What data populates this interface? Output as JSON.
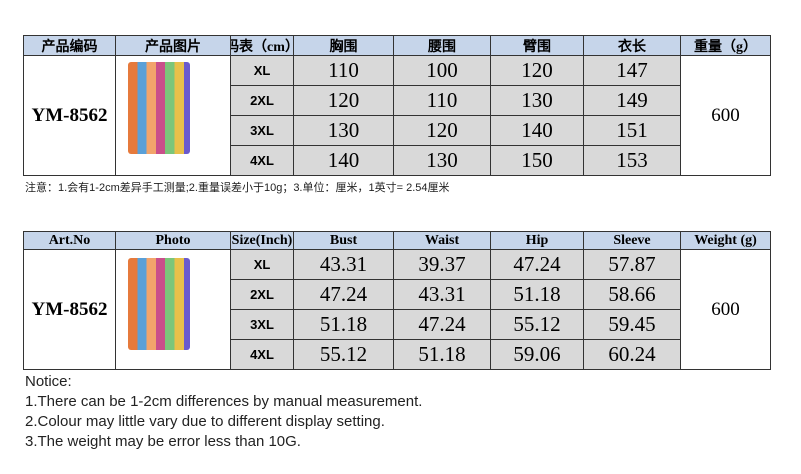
{
  "tables": [
    {
      "headers": [
        "产品编码",
        "产品图片",
        "码表（cm）",
        "胸围",
        "腰围",
        "臂围",
        "衣长",
        "重量（g）"
      ],
      "code": "YM-8562",
      "rows": [
        [
          "XL",
          110,
          100,
          120,
          147
        ],
        [
          "2XL",
          120,
          110,
          130,
          149
        ],
        [
          "3XL",
          130,
          120,
          140,
          151
        ],
        [
          "4XL",
          140,
          130,
          150,
          153
        ]
      ],
      "weight": 600,
      "notes": [
        "注意：1.会有1-2cm差异手工测量;2.重量误差小于10g；3.单位：厘米，1英寸= 2.54厘米"
      ]
    },
    {
      "headers": [
        "Art.No",
        "Photo",
        "Size(Inch)",
        "Bust",
        "Waist",
        "Hip",
        "Sleeve",
        "Weight (g)"
      ],
      "code": "YM-8562",
      "rows": [
        [
          "XL",
          43.31,
          39.37,
          47.24,
          57.87
        ],
        [
          "2XL",
          47.24,
          43.31,
          51.18,
          58.66
        ],
        [
          "3XL",
          51.18,
          47.24,
          55.12,
          59.45
        ],
        [
          "4XL",
          55.12,
          51.18,
          59.06,
          60.24
        ]
      ],
      "weight": 600,
      "notes": [
        "Notice:",
        "1.There can be 1-2cm differences by manual measurement.",
        "2.Colour may little vary due to different display setting.",
        "3.The weight may be error less than 10G."
      ]
    }
  ]
}
